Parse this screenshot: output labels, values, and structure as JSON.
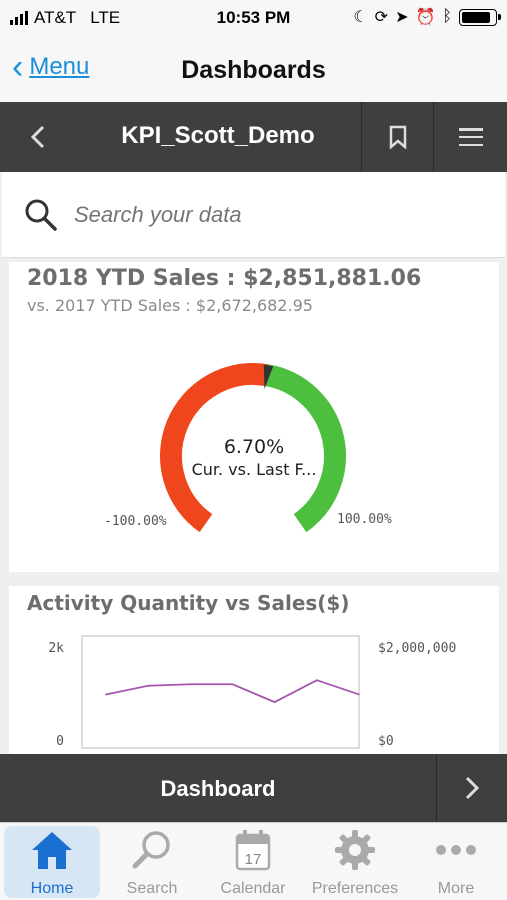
{
  "status_bar": {
    "carrier": "AT&T",
    "network": "LTE",
    "time": "10:53 PM"
  },
  "nav": {
    "back_label": "Menu",
    "title": "Dashboards"
  },
  "app_bar": {
    "title": "KPI_Scott_Demo"
  },
  "search": {
    "placeholder": "Search your data"
  },
  "kpi": {
    "title": "2018 YTD Sales : $2,851,881.06",
    "subtitle": "vs. 2017 YTD Sales : $2,672,682.95",
    "gauge_value": "6.70%",
    "gauge_label": "Cur. vs. Last F...",
    "gauge_min": "-100.00%",
    "gauge_max": "100.00%",
    "gauge_fraction": 0.5335,
    "colors": {
      "negative": "#f0461e",
      "positive": "#4cbf3f",
      "needle": "#333333"
    }
  },
  "activity_chart": {
    "title": "Activity Quantity vs Sales($)",
    "chart_data": {
      "type": "line",
      "title": "Activity Quantity vs Sales($)",
      "y_left_ticks": [
        "2k",
        "0"
      ],
      "y_right_ticks": [
        "$2,000,000",
        "$0"
      ],
      "ylim": [
        0,
        2000
      ],
      "series": [
        {
          "values": [
            1050,
            1220,
            1250,
            1250,
            900,
            1330,
            1050
          ],
          "color": "#a855b0"
        }
      ]
    }
  },
  "dashboard_bar": {
    "label": "Dashboard"
  },
  "tabs": [
    {
      "label": "Home",
      "icon": "home-icon",
      "active": true
    },
    {
      "label": "Search",
      "icon": "search-icon",
      "active": false
    },
    {
      "label": "Calendar",
      "icon": "calendar-icon",
      "calendar_day": "17",
      "active": false
    },
    {
      "label": "Preferences",
      "icon": "gear-icon",
      "active": false
    },
    {
      "label": "More",
      "icon": "more-icon",
      "active": false
    }
  ]
}
